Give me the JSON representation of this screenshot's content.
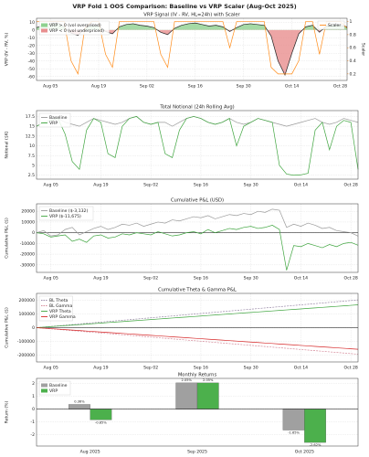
{
  "title": "VRP Fold 1 OOS Comparison: Baseline vs VRP Scaler (Aug-Oct 2025)",
  "chart_data": [
    {
      "type": "line",
      "title": "VRP Signal (IV - RV, HL=24h) with Scaler",
      "ylabel": "VRP (IV - RV, %)",
      "y2label": "Scaler",
      "x": [
        "Aug 01",
        "Aug 03",
        "Aug 05",
        "Aug 07",
        "Aug 09",
        "Aug 11",
        "Aug 13",
        "Aug 15",
        "Aug 17",
        "Aug 19",
        "Aug 21",
        "Aug 23",
        "Aug 25",
        "Aug 27",
        "Aug 29",
        "Aug 31",
        "Sep 02",
        "Sep 04",
        "Sep 06",
        "Sep 08",
        "Sep 10",
        "Sep 12",
        "Sep 14",
        "Sep 16",
        "Sep 18",
        "Sep 20",
        "Sep 22",
        "Sep 24",
        "Sep 26",
        "Sep 28",
        "Sep 30",
        "Oct 02",
        "Oct 04",
        "Oct 06",
        "Oct 08",
        "Oct 10",
        "Oct 12",
        "Oct 14",
        "Oct 16",
        "Oct 18",
        "Oct 20",
        "Oct 22",
        "Oct 24",
        "Oct 26",
        "Oct 28",
        "Oct 30"
      ],
      "xticks": [
        "Aug 05",
        "Aug 19",
        "Sep 02",
        "Sep 16",
        "Sep 30",
        "Oct 14",
        "Oct 28"
      ],
      "ylim": [
        -65,
        15
      ],
      "yticks": [
        -60,
        -50,
        -40,
        -30,
        -20,
        -10,
        0,
        10
      ],
      "y2lim": [
        0.1,
        1.05
      ],
      "y2ticks": [
        0.2,
        0.4,
        0.6,
        0.8,
        1.0
      ],
      "grid": true,
      "legend": "upper left",
      "series": [
        {
          "color": "#222222",
          "positive_label": "VRP > 0 (vol overpriced)",
          "positive_color": "#8fd18f",
          "negative_label": "VRP < 0 (vol underpriced)",
          "negative_color": "#e88f8f",
          "values": [
            3,
            6,
            8,
            9,
            4,
            -4,
            -7,
            2,
            6,
            5,
            -2,
            -5,
            4,
            7,
            8,
            6,
            5,
            3,
            -3,
            -6,
            2,
            6,
            8,
            9,
            7,
            5,
            6,
            4,
            -2,
            3,
            7,
            8,
            7,
            6,
            -8,
            -40,
            -58,
            -30,
            -5,
            4,
            6,
            -3,
            5,
            7,
            6,
            4
          ]
        },
        {
          "name": "Scaler",
          "axis": "y2",
          "color": "#ff8c1a",
          "legend": "upper right",
          "values": [
            1,
            1,
            1,
            1,
            1,
            0.4,
            0.2,
            0.9,
            1,
            1,
            0.5,
            0.3,
            1,
            1,
            1,
            1,
            1,
            1,
            0.5,
            0.3,
            1,
            1,
            1,
            1,
            1,
            1,
            1,
            1,
            0.6,
            1,
            1,
            1,
            1,
            1,
            0.3,
            0.2,
            0.2,
            0.2,
            0.4,
            1,
            1,
            0.5,
            1,
            1,
            1,
            0.9
          ]
        }
      ]
    },
    {
      "type": "line",
      "title": "Total Notional (24h Rolling Avg)",
      "ylabel": "Notional ($K)",
      "x": [
        "Aug 01",
        "Aug 03",
        "Aug 05",
        "Aug 07",
        "Aug 09",
        "Aug 11",
        "Aug 13",
        "Aug 15",
        "Aug 17",
        "Aug 19",
        "Aug 21",
        "Aug 23",
        "Aug 25",
        "Aug 27",
        "Aug 29",
        "Aug 31",
        "Sep 02",
        "Sep 04",
        "Sep 06",
        "Sep 08",
        "Sep 10",
        "Sep 12",
        "Sep 14",
        "Sep 16",
        "Sep 18",
        "Sep 20",
        "Sep 22",
        "Sep 24",
        "Sep 26",
        "Sep 28",
        "Sep 30",
        "Oct 02",
        "Oct 04",
        "Oct 06",
        "Oct 08",
        "Oct 10",
        "Oct 12",
        "Oct 14",
        "Oct 16",
        "Oct 18",
        "Oct 20",
        "Oct 22",
        "Oct 24",
        "Oct 26",
        "Oct 28",
        "Oct 30"
      ],
      "xticks": [
        "Aug 05",
        "Aug 19",
        "Sep 02",
        "Sep 16",
        "Sep 30",
        "Oct 14",
        "Oct 28"
      ],
      "ylim": [
        1.5,
        19
      ],
      "yticks": [
        2.5,
        5.0,
        7.5,
        10.0,
        12.5,
        15.0,
        17.5
      ],
      "grid": true,
      "legend": "upper left",
      "series": [
        {
          "name": "Baseline",
          "color": "#9a9a9a",
          "values": [
            15,
            16,
            16.5,
            17,
            16,
            15.5,
            15,
            16,
            17,
            16.5,
            16,
            15.5,
            16,
            17,
            17.5,
            16,
            15.5,
            16,
            16,
            15,
            16,
            17,
            17.5,
            17,
            16,
            15.5,
            16,
            17,
            16,
            15.5,
            16,
            17,
            16.5,
            16,
            15.5,
            15,
            15.5,
            16,
            16.5,
            17,
            16,
            15.5,
            16,
            17,
            16.5,
            16
          ]
        },
        {
          "name": "VRP",
          "color": "#3fa53f",
          "values": [
            15,
            16,
            16.5,
            17,
            13,
            6,
            4,
            14,
            17,
            16,
            8,
            7,
            15,
            17,
            17.5,
            16,
            15.5,
            16,
            8,
            7,
            14,
            17,
            17.5,
            17,
            16,
            15.5,
            16,
            17,
            10,
            15,
            16,
            17,
            16.5,
            16,
            5,
            2.8,
            2.5,
            2.6,
            3,
            14,
            16,
            9,
            15,
            16.5,
            16,
            4
          ]
        }
      ]
    },
    {
      "type": "line",
      "title": "Cumulative P&L (USD)",
      "ylabel": "Cumulative P&L ($)",
      "x": [
        "Aug 01",
        "Aug 03",
        "Aug 05",
        "Aug 07",
        "Aug 09",
        "Aug 11",
        "Aug 13",
        "Aug 15",
        "Aug 17",
        "Aug 19",
        "Aug 21",
        "Aug 23",
        "Aug 25",
        "Aug 27",
        "Aug 29",
        "Aug 31",
        "Sep 02",
        "Sep 04",
        "Sep 06",
        "Sep 08",
        "Sep 10",
        "Sep 12",
        "Sep 14",
        "Sep 16",
        "Sep 18",
        "Sep 20",
        "Sep 22",
        "Sep 24",
        "Sep 26",
        "Sep 28",
        "Sep 30",
        "Oct 02",
        "Oct 04",
        "Oct 06",
        "Oct 08",
        "Oct 10",
        "Oct 12",
        "Oct 14",
        "Oct 16",
        "Oct 18",
        "Oct 20",
        "Oct 22",
        "Oct 24",
        "Oct 26",
        "Oct 28",
        "Oct 30"
      ],
      "xticks": [
        "Aug 05",
        "Aug 19",
        "Sep 02",
        "Sep 16",
        "Sep 30",
        "Oct 14",
        "Oct 28"
      ],
      "ylim": [
        -37000,
        27000
      ],
      "yticks": [
        -30000,
        -20000,
        -10000,
        0,
        10000,
        20000
      ],
      "grid": true,
      "zero_line": true,
      "legend": "upper left",
      "series": [
        {
          "name": "Baseline ($-3,132)",
          "color": "#9a9a9a",
          "values": [
            0,
            2000,
            -3000,
            -2000,
            3000,
            5000,
            -2000,
            1000,
            4000,
            6000,
            3000,
            5000,
            8000,
            7000,
            9000,
            6000,
            8000,
            10000,
            9000,
            12000,
            11000,
            13000,
            15000,
            14000,
            16000,
            13000,
            15000,
            17000,
            16000,
            18000,
            17000,
            20000,
            19000,
            22000,
            21000,
            5000,
            8000,
            6000,
            9000,
            7000,
            4000,
            5000,
            2000,
            1000,
            0,
            -3132
          ]
        },
        {
          "name": "VRP ($-11,675)",
          "color": "#3fa53f",
          "values": [
            0,
            -1000,
            -4000,
            -3000,
            -2000,
            -8000,
            -6000,
            -9000,
            -3000,
            -2000,
            -5000,
            -4000,
            -1000,
            -2000,
            0,
            -1000,
            -2000,
            1000,
            -1000,
            -3000,
            -2000,
            0,
            1000,
            -1000,
            3000,
            0,
            2000,
            4000,
            3000,
            5000,
            6000,
            4000,
            5000,
            7000,
            3000,
            -35000,
            -12000,
            -13000,
            -10000,
            -12000,
            -14000,
            -11000,
            -13000,
            -10000,
            -9000,
            -11675
          ]
        }
      ]
    },
    {
      "type": "line",
      "title": "Cumulative Theta & Gamma P&L",
      "ylabel": "Cumulative P&L ($)",
      "x": [
        "Aug 01",
        "Aug 03",
        "Aug 05",
        "Aug 07",
        "Aug 09",
        "Aug 11",
        "Aug 13",
        "Aug 15",
        "Aug 17",
        "Aug 19",
        "Aug 21",
        "Aug 23",
        "Aug 25",
        "Aug 27",
        "Aug 29",
        "Aug 31",
        "Sep 02",
        "Sep 04",
        "Sep 06",
        "Sep 08",
        "Sep 10",
        "Sep 12",
        "Sep 14",
        "Sep 16",
        "Sep 18",
        "Sep 20",
        "Sep 22",
        "Sep 24",
        "Sep 26",
        "Sep 28",
        "Sep 30",
        "Oct 02",
        "Oct 04",
        "Oct 06",
        "Oct 08",
        "Oct 10",
        "Oct 12",
        "Oct 14",
        "Oct 16",
        "Oct 18",
        "Oct 20",
        "Oct 22",
        "Oct 24",
        "Oct 26",
        "Oct 28",
        "Oct 30"
      ],
      "xticks": [
        "Aug 05",
        "Aug 19",
        "Sep 02",
        "Sep 16",
        "Sep 30",
        "Oct 14",
        "Oct 28"
      ],
      "ylim": [
        -250000,
        250000
      ],
      "yticks": [
        -200000,
        -100000,
        0,
        100000,
        200000
      ],
      "grid": true,
      "zero_line": true,
      "legend": "upper left",
      "series": [
        {
          "name": "BL Theta",
          "color": "#9a8aa8",
          "dashed": true,
          "values": [
            0,
            4500,
            9000,
            13500,
            18000,
            22500,
            27000,
            31500,
            36000,
            40500,
            45000,
            49500,
            54000,
            58500,
            63000,
            67500,
            72000,
            76500,
            81000,
            85500,
            90000,
            94500,
            99000,
            103500,
            108000,
            112500,
            117000,
            121500,
            126000,
            130500,
            135000,
            139500,
            144000,
            148500,
            153000,
            157500,
            162000,
            166500,
            171000,
            175500,
            180000,
            184500,
            189000,
            193500,
            198000,
            202500
          ]
        },
        {
          "name": "BL Gamma",
          "color": "#d58a9a",
          "dashed": true,
          "values": [
            0,
            -4300,
            -8600,
            -12900,
            -17200,
            -21500,
            -25800,
            -30100,
            -34400,
            -38700,
            -43000,
            -47300,
            -51600,
            -55900,
            -60200,
            -64500,
            -68800,
            -73100,
            -77400,
            -81700,
            -86000,
            -90300,
            -94600,
            -98900,
            -103200,
            -107500,
            -111800,
            -116100,
            -120400,
            -124700,
            -129000,
            -133300,
            -137600,
            -141900,
            -146200,
            -150500,
            -154800,
            -159100,
            -163400,
            -167700,
            -172000,
            -176300,
            -180600,
            -184900,
            -189200,
            -193500
          ]
        },
        {
          "name": "VRP Theta",
          "color": "#3fa53f",
          "values": [
            0,
            3700,
            7400,
            11100,
            14800,
            18500,
            22200,
            25900,
            29600,
            33300,
            37000,
            40700,
            44400,
            48100,
            51800,
            55500,
            59200,
            62900,
            66600,
            70300,
            74000,
            77700,
            81400,
            85100,
            88800,
            92500,
            96200,
            99900,
            103600,
            107300,
            111000,
            114700,
            118400,
            122100,
            125800,
            129500,
            133200,
            136900,
            140600,
            144300,
            148000,
            151700,
            155400,
            159100,
            162800,
            166500
          ]
        },
        {
          "name": "VRP Gamma",
          "color": "#d62728",
          "values": [
            0,
            -3500,
            -7000,
            -10500,
            -14000,
            -17500,
            -21000,
            -24500,
            -28000,
            -31500,
            -35000,
            -38500,
            -42000,
            -45500,
            -49000,
            -52500,
            -56000,
            -59500,
            -63000,
            -66500,
            -70000,
            -73500,
            -77000,
            -80500,
            -84000,
            -87500,
            -91000,
            -94500,
            -98000,
            -101500,
            -105000,
            -108500,
            -112000,
            -115500,
            -119000,
            -122500,
            -126000,
            -129500,
            -133000,
            -136500,
            -140000,
            -143500,
            -147000,
            -150500,
            -154000,
            -157500
          ]
        }
      ]
    },
    {
      "type": "bar",
      "title": "Monthly Returns",
      "ylabel": "Return (%)",
      "categories": [
        "Aug 2025",
        "Sep 2025",
        "Oct 2025"
      ],
      "ylim": [
        -2.9,
        2.4
      ],
      "yticks": [
        -2,
        -1,
        0,
        1,
        2
      ],
      "grid": true,
      "zero_line": true,
      "legend": "upper left",
      "series": [
        {
          "name": "Baseline",
          "color": "#a0a0a0",
          "values": [
            0.36,
            2.05,
            -1.65
          ],
          "value_labels": [
            "0.36%",
            "2.05%",
            "-1.65%"
          ]
        },
        {
          "name": "VRP",
          "color": "#4cb04c",
          "values": [
            -0.85,
            2.05,
            -2.62
          ],
          "value_labels": [
            "-0.85%",
            "2.05%",
            "-2.62%"
          ]
        }
      ]
    }
  ]
}
